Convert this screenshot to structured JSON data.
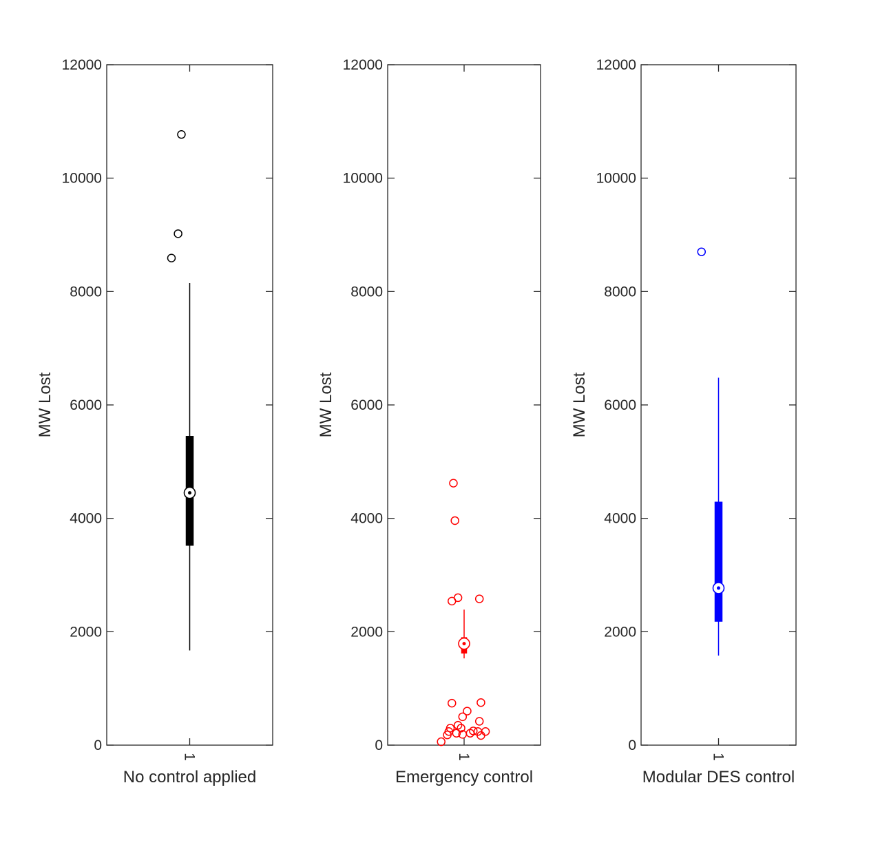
{
  "chart_data": [
    {
      "type": "boxplot",
      "color": "#000000",
      "ylabel": "MW Lost",
      "xlabel": "No control applied",
      "xtick_labels": [
        "1"
      ],
      "ylim": [
        0,
        12000
      ],
      "yticks": [
        0,
        2000,
        4000,
        6000,
        8000,
        10000,
        12000
      ],
      "box": {
        "median": 4450,
        "q1": 3520,
        "q3": 5450,
        "whisker_low": 1670,
        "whisker_high": 8150
      },
      "outliers": [
        {
          "x": 0.95,
          "y": 10770
        },
        {
          "x": 0.93,
          "y": 9020
        },
        {
          "x": 0.89,
          "y": 8590
        }
      ]
    },
    {
      "type": "boxplot",
      "color": "#ff0000",
      "ylabel": "MW Lost",
      "xlabel": "Emergency control",
      "xtick_labels": [
        "1"
      ],
      "ylim": [
        0,
        12000
      ],
      "yticks": [
        0,
        2000,
        4000,
        6000,
        8000,
        10000,
        12000
      ],
      "box": {
        "median": 1790,
        "q1": 1620,
        "q3": 1900,
        "whisker_low": 1530,
        "whisker_high": 2390
      },
      "outliers": [
        {
          "x": 0.93,
          "y": 4620
        },
        {
          "x": 0.94,
          "y": 3960
        },
        {
          "x": 0.96,
          "y": 2600
        },
        {
          "x": 0.92,
          "y": 2540
        },
        {
          "x": 1.1,
          "y": 2580
        },
        {
          "x": 0.92,
          "y": 740
        },
        {
          "x": 1.11,
          "y": 750
        },
        {
          "x": 1.02,
          "y": 600
        },
        {
          "x": 0.99,
          "y": 500
        },
        {
          "x": 1.1,
          "y": 420
        },
        {
          "x": 0.96,
          "y": 350
        },
        {
          "x": 0.91,
          "y": 300
        },
        {
          "x": 0.98,
          "y": 300
        },
        {
          "x": 0.9,
          "y": 240
        },
        {
          "x": 1.06,
          "y": 250
        },
        {
          "x": 1.09,
          "y": 240
        },
        {
          "x": 1.14,
          "y": 240
        },
        {
          "x": 0.95,
          "y": 210
        },
        {
          "x": 1.04,
          "y": 210
        },
        {
          "x": 0.89,
          "y": 180
        },
        {
          "x": 0.99,
          "y": 190
        },
        {
          "x": 1.11,
          "y": 170
        },
        {
          "x": 0.85,
          "y": 60
        }
      ]
    },
    {
      "type": "boxplot",
      "color": "#0000ff",
      "ylabel": "MW Lost",
      "xlabel": "Modular DES control",
      "xtick_labels": [
        "1"
      ],
      "ylim": [
        0,
        12000
      ],
      "yticks": [
        0,
        2000,
        4000,
        6000,
        8000,
        10000,
        12000
      ],
      "box": {
        "median": 2770,
        "q1": 2180,
        "q3": 4290,
        "whisker_low": 1580,
        "whisker_high": 6480
      },
      "outliers": [
        {
          "x": 0.89,
          "y": 8700
        }
      ]
    }
  ]
}
